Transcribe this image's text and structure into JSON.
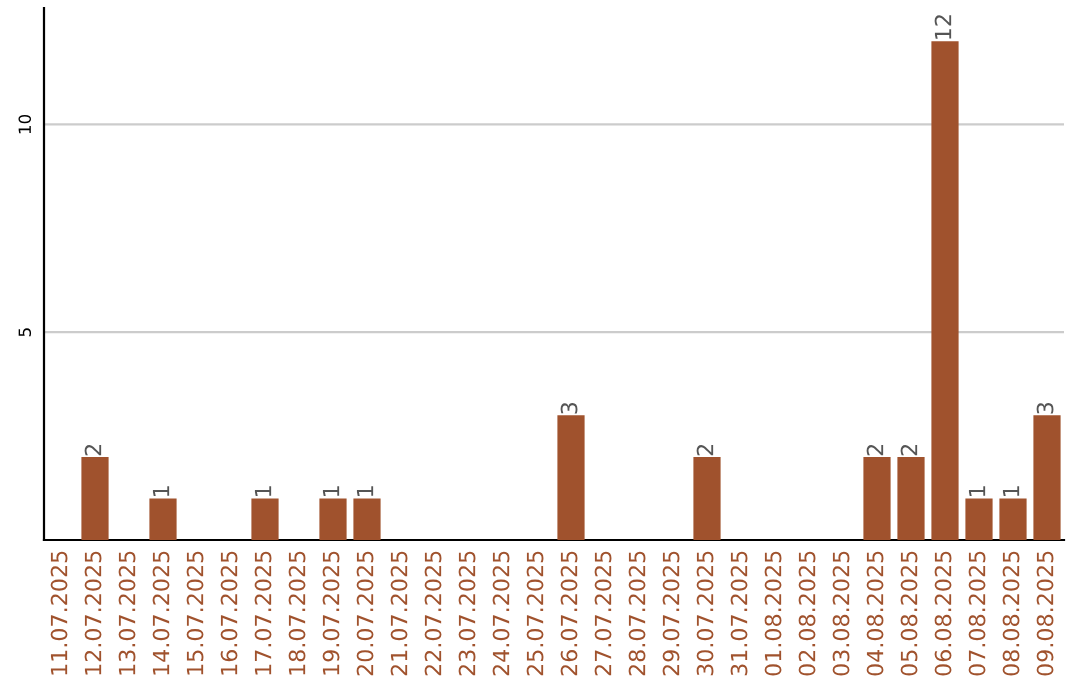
{
  "chart_data": {
    "type": "bar",
    "categories": [
      "11.07.2025",
      "12.07.2025",
      "13.07.2025",
      "14.07.2025",
      "15.07.2025",
      "16.07.2025",
      "17.07.2025",
      "18.07.2025",
      "19.07.2025",
      "20.07.2025",
      "21.07.2025",
      "22.07.2025",
      "23.07.2025",
      "24.07.2025",
      "25.07.2025",
      "26.07.2025",
      "27.07.2025",
      "28.07.2025",
      "29.07.2025",
      "30.07.2025",
      "31.07.2025",
      "01.08.2025",
      "02.08.2025",
      "03.08.2025",
      "04.08.2025",
      "05.08.2025",
      "06.08.2025",
      "07.08.2025",
      "08.08.2025",
      "09.08.2025"
    ],
    "values": [
      0,
      2,
      0,
      1,
      0,
      0,
      1,
      0,
      1,
      1,
      0,
      0,
      0,
      0,
      0,
      3,
      0,
      0,
      0,
      2,
      0,
      0,
      0,
      0,
      2,
      2,
      12,
      1,
      1,
      3
    ],
    "value_labels": [
      null,
      "2",
      null,
      "1",
      null,
      null,
      "1",
      null,
      "1",
      "1",
      null,
      null,
      null,
      null,
      null,
      "3",
      null,
      null,
      null,
      "2",
      null,
      null,
      null,
      null,
      "2",
      "2",
      "12",
      "1",
      "1",
      "3"
    ],
    "color": "#a0522d",
    "ylim": [
      0,
      12.8
    ],
    "yticks": [
      5,
      10
    ],
    "grid": "y"
  }
}
